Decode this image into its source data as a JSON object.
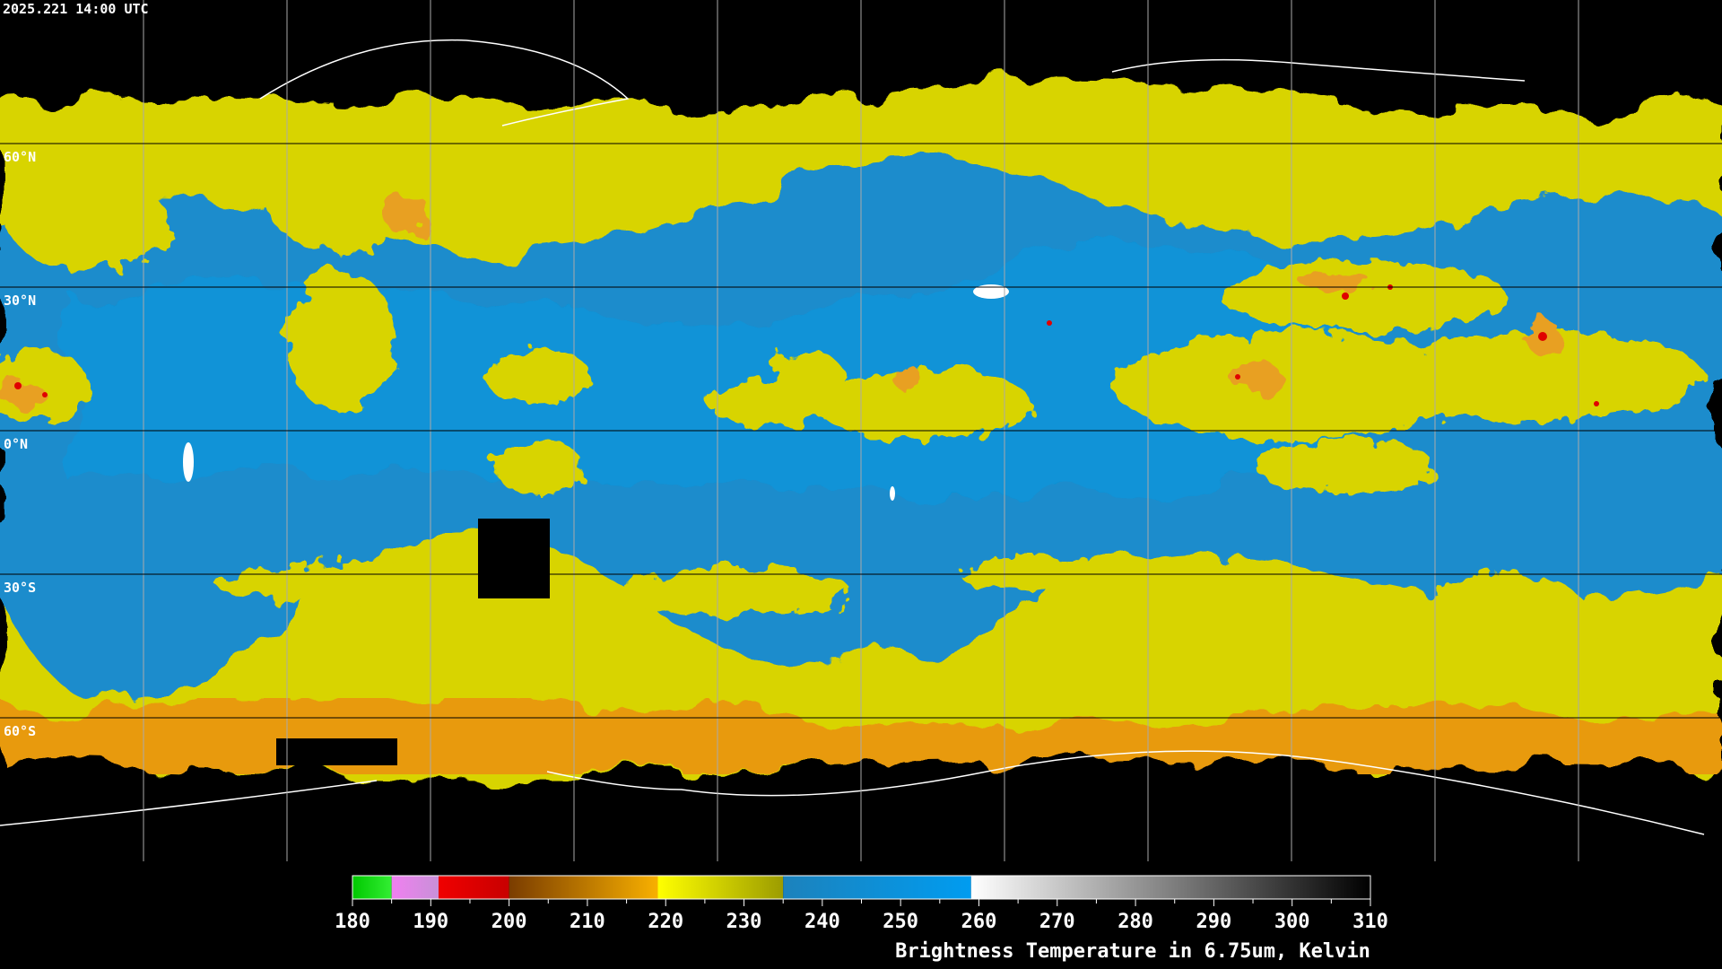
{
  "timestamp": "2025.221 14:00 UTC",
  "map": {
    "lat_ticks": [
      {
        "value": 60,
        "label": "60°N"
      },
      {
        "value": 30,
        "label": "30°N"
      },
      {
        "value": 0,
        "label": "0°N"
      },
      {
        "value": -30,
        "label": "30°S"
      },
      {
        "value": -60,
        "label": "60°S"
      }
    ]
  },
  "colorbar": {
    "title": "Brightness Temperature in 6.75um, Kelvin",
    "range": [
      180,
      310
    ],
    "ticks": [
      180,
      190,
      200,
      210,
      220,
      230,
      240,
      250,
      260,
      270,
      280,
      290,
      300,
      310
    ],
    "segments": [
      {
        "from": 180,
        "to": 185,
        "colors": [
          "#00c800",
          "#33ee33"
        ]
      },
      {
        "from": 185,
        "to": 191,
        "colors": [
          "#f080f0",
          "#c890d8"
        ]
      },
      {
        "from": 191,
        "to": 200,
        "colors": [
          "#f00000",
          "#c80000"
        ]
      },
      {
        "from": 200,
        "to": 219,
        "colors": [
          "#7a3c00",
          "#f8b000"
        ]
      },
      {
        "from": 219,
        "to": 235,
        "colors": [
          "#ffff00",
          "#9c9c00"
        ]
      },
      {
        "from": 235,
        "to": 259,
        "colors": [
          "#1c82bc",
          "#009cf0"
        ]
      },
      {
        "from": 259,
        "to": 310,
        "colors": [
          "#ffffff",
          "#000000"
        ]
      }
    ]
  }
}
